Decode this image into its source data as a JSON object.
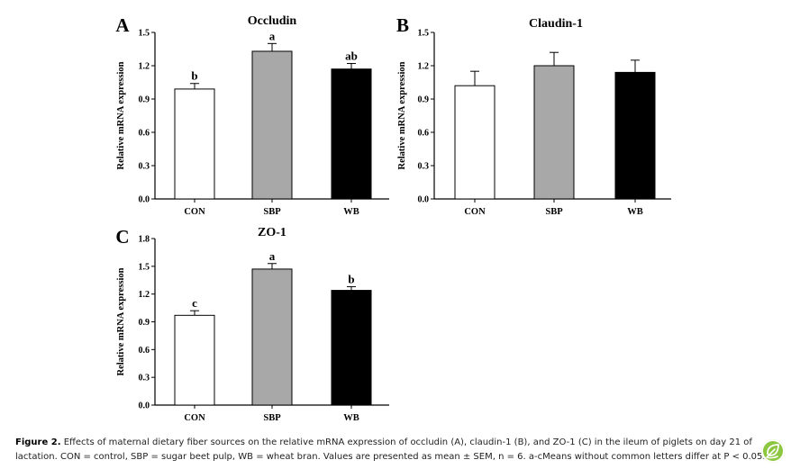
{
  "chart_data": [
    {
      "panel_letter": "A",
      "type": "bar",
      "title": "Occludin",
      "ylabel": "Relative mRNA expression",
      "categories": [
        "CON",
        "SBP",
        "WB"
      ],
      "values": [
        0.99,
        1.33,
        1.17
      ],
      "errors": [
        0.05,
        0.07,
        0.05
      ],
      "sig_letters": [
        "b",
        "a",
        "ab"
      ],
      "bar_colors": [
        "#ffffff",
        "#a8a8a8",
        "#000000"
      ],
      "ylim": [
        0,
        1.5
      ],
      "yticks": [
        "0.0",
        "0.3",
        "0.6",
        "0.9",
        "1.2",
        "1.5"
      ]
    },
    {
      "panel_letter": "B",
      "type": "bar",
      "title": "Claudin-1",
      "ylabel": "Relative mRNA expression",
      "categories": [
        "CON",
        "SBP",
        "WB"
      ],
      "values": [
        1.02,
        1.2,
        1.14
      ],
      "errors": [
        0.13,
        0.12,
        0.11
      ],
      "sig_letters": [
        "",
        "",
        ""
      ],
      "bar_colors": [
        "#ffffff",
        "#a8a8a8",
        "#000000"
      ],
      "ylim": [
        0,
        1.5
      ],
      "yticks": [
        "0.0",
        "0.3",
        "0.6",
        "0.9",
        "1.2",
        "1.5"
      ]
    },
    {
      "panel_letter": "C",
      "type": "bar",
      "title": "ZO-1",
      "ylabel": "Relative mRNA expression",
      "categories": [
        "CON",
        "SBP",
        "WB"
      ],
      "values": [
        0.97,
        1.47,
        1.24
      ],
      "errors": [
        0.05,
        0.06,
        0.04
      ],
      "sig_letters": [
        "c",
        "a",
        "b"
      ],
      "bar_colors": [
        "#ffffff",
        "#a8a8a8",
        "#000000"
      ],
      "ylim": [
        0,
        1.8
      ],
      "yticks": [
        "0.0",
        "0.3",
        "0.6",
        "0.9",
        "1.2",
        "1.5",
        "1.8"
      ]
    }
  ],
  "caption": {
    "label": "Figure 2.",
    "text": "Effects of maternal dietary fiber sources on the relative mRNA expression of occludin (A), claudin-1 (B), and ZO-1 (C) in the ileum of piglets on day 21 of lactation. CON = control, SBP = sugar beet pulp, WB = wheat bran. Values are presented as mean ± SEM, n = 6. a-cMeans without common letters differ at P < 0.05."
  },
  "badge": {
    "icon": "leaf-logo-icon",
    "color": "#8dc63f"
  }
}
